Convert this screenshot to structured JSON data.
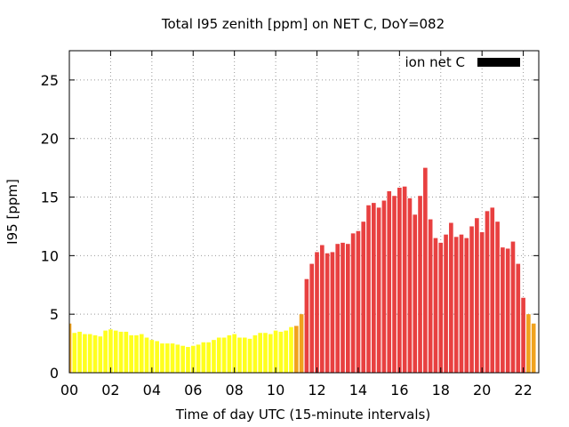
{
  "chart_data": {
    "type": "bar",
    "title": "Total I95 zenith [ppm] on NET C, DoY=082",
    "xlabel": "Time of day UTC (15-minute intervals)",
    "ylabel": "I95 [ppm]",
    "xlim": [
      0,
      22.75
    ],
    "ylim": [
      0,
      27.5
    ],
    "x_ticks": [
      "00",
      "02",
      "04",
      "06",
      "08",
      "10",
      "12",
      "14",
      "16",
      "18",
      "20",
      "22"
    ],
    "y_ticks": [
      "0",
      "5",
      "10",
      "15",
      "20",
      "25"
    ],
    "grid": true,
    "legend": {
      "label": "ion net C",
      "color": "#000000",
      "position": "top-right"
    },
    "colors": {
      "low": "#ffff1e",
      "mid": "#f0a21e",
      "high": "#e84040"
    },
    "interval_hours": 0.25,
    "values": [
      4.2,
      3.4,
      3.5,
      3.3,
      3.3,
      3.2,
      3.1,
      3.6,
      3.7,
      3.6,
      3.5,
      3.5,
      3.2,
      3.2,
      3.3,
      3.0,
      2.8,
      2.7,
      2.5,
      2.5,
      2.5,
      2.4,
      2.3,
      2.2,
      2.3,
      2.4,
      2.6,
      2.6,
      2.8,
      3.0,
      3.0,
      3.2,
      3.3,
      3.0,
      3.0,
      2.9,
      3.2,
      3.4,
      3.4,
      3.3,
      3.6,
      3.5,
      3.6,
      3.9,
      4.0,
      5.0,
      8.0,
      9.3,
      10.3,
      10.9,
      10.2,
      10.3,
      11.0,
      11.1,
      11.0,
      11.9,
      12.1,
      12.9,
      14.3,
      14.5,
      14.1,
      14.7,
      15.5,
      15.1,
      15.8,
      15.9,
      14.9,
      13.5,
      15.1,
      17.5,
      13.1,
      11.5,
      11.1,
      11.8,
      12.8,
      11.6,
      11.8,
      11.5,
      12.5,
      13.2,
      12.0,
      13.8,
      14.1,
      12.9,
      10.7,
      10.6,
      11.2,
      9.3,
      6.4,
      5.0,
      4.2
    ]
  }
}
